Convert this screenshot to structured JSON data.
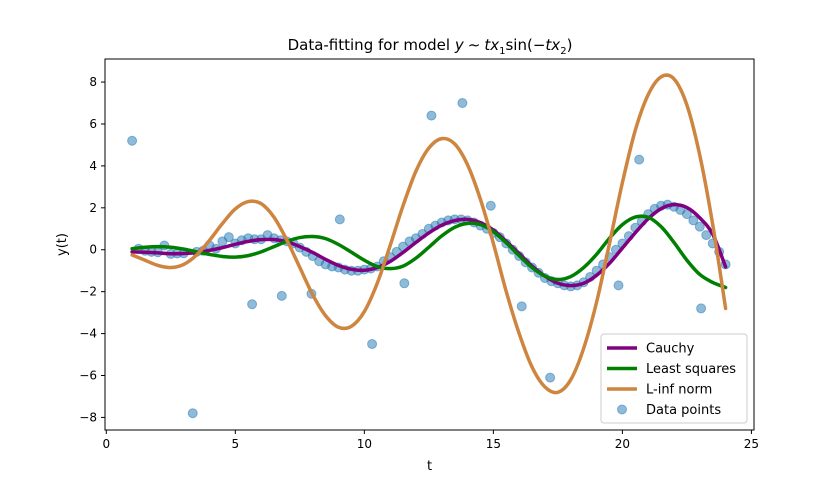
{
  "chart_data": {
    "type": "line",
    "title_prefix": "Data-fitting for model ",
    "title_formula": {
      "y": "y",
      "sim": "∼",
      "t1": "t",
      "x1": "x",
      "sub1": "1",
      "sin": "sin(−",
      "t2": "t",
      "x2": "x",
      "sub2": "2",
      "close": ")"
    },
    "xlabel": "t",
    "ylabel": "y(t)",
    "xlim": [
      -0.05,
      25.1
    ],
    "ylim": [
      -8.6,
      9.1
    ],
    "xticks": [
      0,
      5,
      10,
      15,
      20,
      25
    ],
    "yticks": [
      -8,
      -6,
      -4,
      -2,
      0,
      2,
      4,
      6,
      8
    ],
    "grid": false,
    "legend_position": "lower-right",
    "colors": {
      "cauchy": "#800080",
      "least_squares": "#008000",
      "linf": "#cd853f",
      "points": "#1f77b4"
    },
    "series": [
      {
        "name": "Cauchy",
        "x": [
          1.0,
          1.5,
          2.0,
          2.5,
          3.0,
          3.5,
          4.0,
          4.5,
          5.0,
          5.5,
          6.0,
          6.5,
          7.0,
          7.5,
          8.0,
          8.5,
          9.0,
          9.5,
          10.0,
          10.5,
          11.0,
          11.5,
          12.0,
          12.5,
          13.0,
          13.5,
          14.0,
          14.5,
          15.0,
          15.5,
          16.0,
          16.5,
          17.0,
          17.5,
          18.0,
          18.5,
          19.0,
          19.5,
          20.0,
          20.5,
          21.0,
          21.5,
          22.0,
          22.5,
          23.0,
          23.5,
          24.0
        ],
        "y": [
          -0.1,
          -0.12,
          -0.15,
          -0.19,
          -0.18,
          -0.13,
          -0.03,
          0.1,
          0.26,
          0.4,
          0.48,
          0.49,
          0.38,
          0.15,
          -0.13,
          -0.46,
          -0.75,
          -0.93,
          -0.98,
          -0.85,
          -0.56,
          -0.13,
          0.35,
          0.8,
          1.17,
          1.39,
          1.45,
          1.29,
          0.94,
          0.4,
          -0.18,
          -0.78,
          -1.26,
          -1.6,
          -1.71,
          -1.6,
          -1.22,
          -0.65,
          0.08,
          0.81,
          1.48,
          1.96,
          2.15,
          2.01,
          1.52,
          0.74,
          -0.82
        ]
      },
      {
        "name": "Least squares",
        "x": [
          1.0,
          1.5,
          2.0,
          2.5,
          3.0,
          3.5,
          4.0,
          4.5,
          5.0,
          5.5,
          6.0,
          6.5,
          7.0,
          7.5,
          8.0,
          8.5,
          9.0,
          9.5,
          10.0,
          10.5,
          11.0,
          11.5,
          12.0,
          12.5,
          13.0,
          13.5,
          14.0,
          14.5,
          15.0,
          15.5,
          16.0,
          16.5,
          17.0,
          17.5,
          18.0,
          18.5,
          19.0,
          19.5,
          20.0,
          20.5,
          21.0,
          21.5,
          22.0,
          22.5,
          23.0,
          23.5,
          24.0
        ],
        "y": [
          0.05,
          0.12,
          0.15,
          0.12,
          0.03,
          -0.1,
          -0.22,
          -0.32,
          -0.35,
          -0.28,
          -0.1,
          0.15,
          0.4,
          0.58,
          0.63,
          0.53,
          0.25,
          -0.12,
          -0.5,
          -0.8,
          -0.9,
          -0.78,
          -0.4,
          0.12,
          0.66,
          1.07,
          1.26,
          1.2,
          0.86,
          0.33,
          -0.28,
          -0.85,
          -1.26,
          -1.42,
          -1.28,
          -0.85,
          -0.22,
          0.55,
          1.2,
          1.56,
          1.55,
          1.1,
          0.35,
          -0.5,
          -1.18,
          -1.56,
          -1.8
        ]
      },
      {
        "name": "L-inf norm",
        "x": [
          1.0,
          1.5,
          2.0,
          2.5,
          3.0,
          3.5,
          4.0,
          4.5,
          5.0,
          5.5,
          6.0,
          6.5,
          7.0,
          7.5,
          8.0,
          8.5,
          9.0,
          9.5,
          10.0,
          10.5,
          11.0,
          11.5,
          12.0,
          12.5,
          13.0,
          13.5,
          14.0,
          14.5,
          15.0,
          15.5,
          16.0,
          16.5,
          17.0,
          17.5,
          18.0,
          18.5,
          19.0,
          19.5,
          20.0,
          20.5,
          21.0,
          21.5,
          22.0,
          22.5,
          23.0,
          23.5,
          24.0
        ],
        "y": [
          -0.25,
          -0.5,
          -0.75,
          -0.85,
          -0.7,
          -0.25,
          0.45,
          1.25,
          1.95,
          2.3,
          2.2,
          1.55,
          0.45,
          -0.85,
          -2.15,
          -3.15,
          -3.7,
          -3.65,
          -2.95,
          -1.6,
          0.2,
          2.1,
          3.75,
          4.85,
          5.3,
          5.05,
          4.05,
          2.4,
          0.3,
          -2.0,
          -4.0,
          -5.6,
          -6.55,
          -6.8,
          -6.2,
          -4.7,
          -2.5,
          0.3,
          3.2,
          5.7,
          7.4,
          8.25,
          8.15,
          6.9,
          4.5,
          1.2,
          -2.8
        ]
      }
    ],
    "points_name": "Data points",
    "points": {
      "x": [
        1.0,
        1.25,
        1.5,
        1.75,
        2.0,
        2.25,
        2.5,
        2.75,
        3.0,
        3.35,
        3.5,
        3.75,
        4.0,
        4.25,
        4.5,
        4.75,
        5.0,
        5.25,
        5.5,
        5.65,
        5.75,
        6.0,
        6.25,
        6.5,
        6.75,
        6.8,
        7.0,
        7.25,
        7.5,
        7.75,
        7.95,
        8.0,
        8.25,
        8.5,
        8.75,
        9.0,
        9.05,
        9.25,
        9.5,
        9.75,
        10.0,
        10.25,
        10.3,
        10.5,
        10.75,
        11.0,
        11.25,
        11.5,
        11.55,
        11.75,
        12.0,
        12.25,
        12.5,
        12.6,
        12.75,
        13.0,
        13.25,
        13.5,
        13.75,
        13.8,
        14.0,
        14.25,
        14.5,
        14.75,
        14.9,
        15.0,
        15.25,
        15.5,
        15.75,
        16.0,
        16.1,
        16.25,
        16.5,
        16.75,
        17.0,
        17.2,
        17.25,
        17.5,
        17.75,
        18.0,
        18.25,
        18.5,
        18.75,
        19.0,
        19.25,
        19.5,
        19.75,
        19.85,
        20.0,
        20.25,
        20.5,
        20.65,
        20.75,
        21.0,
        21.25,
        21.5,
        21.75,
        22.0,
        22.25,
        22.5,
        22.75,
        23.0,
        23.05,
        23.25,
        23.5,
        23.75,
        24.0
      ],
      "y": [
        5.2,
        0.05,
        -0.05,
        -0.1,
        -0.12,
        0.2,
        -0.2,
        -0.18,
        -0.17,
        -7.8,
        -0.1,
        -0.05,
        0.2,
        0.05,
        0.4,
        0.6,
        0.3,
        0.45,
        0.55,
        -2.6,
        0.5,
        0.5,
        0.7,
        0.55,
        0.45,
        -2.2,
        0.4,
        0.3,
        0.1,
        -0.1,
        -2.1,
        -0.3,
        -0.55,
        -0.7,
        -0.8,
        -0.85,
        1.45,
        -0.95,
        -1.0,
        -1.0,
        -0.95,
        -0.9,
        -4.5,
        -0.8,
        -0.55,
        -0.35,
        -0.1,
        0.15,
        -1.6,
        0.4,
        0.55,
        0.75,
        1.0,
        6.4,
        1.15,
        1.3,
        1.4,
        1.45,
        1.45,
        7.0,
        1.4,
        1.3,
        1.15,
        1.0,
        2.1,
        0.8,
        0.6,
        0.3,
        0.0,
        -0.3,
        -2.7,
        -0.6,
        -0.85,
        -1.1,
        -1.35,
        -6.1,
        -1.5,
        -1.6,
        -1.7,
        -1.75,
        -1.7,
        -1.55,
        -1.3,
        -1.0,
        -0.7,
        -0.35,
        0.0,
        -1.7,
        0.3,
        0.65,
        1.05,
        4.3,
        1.35,
        1.7,
        1.95,
        2.1,
        2.15,
        2.05,
        1.9,
        1.7,
        1.4,
        1.1,
        -2.8,
        0.7,
        0.3,
        -0.1,
        -0.7
      ]
    }
  }
}
